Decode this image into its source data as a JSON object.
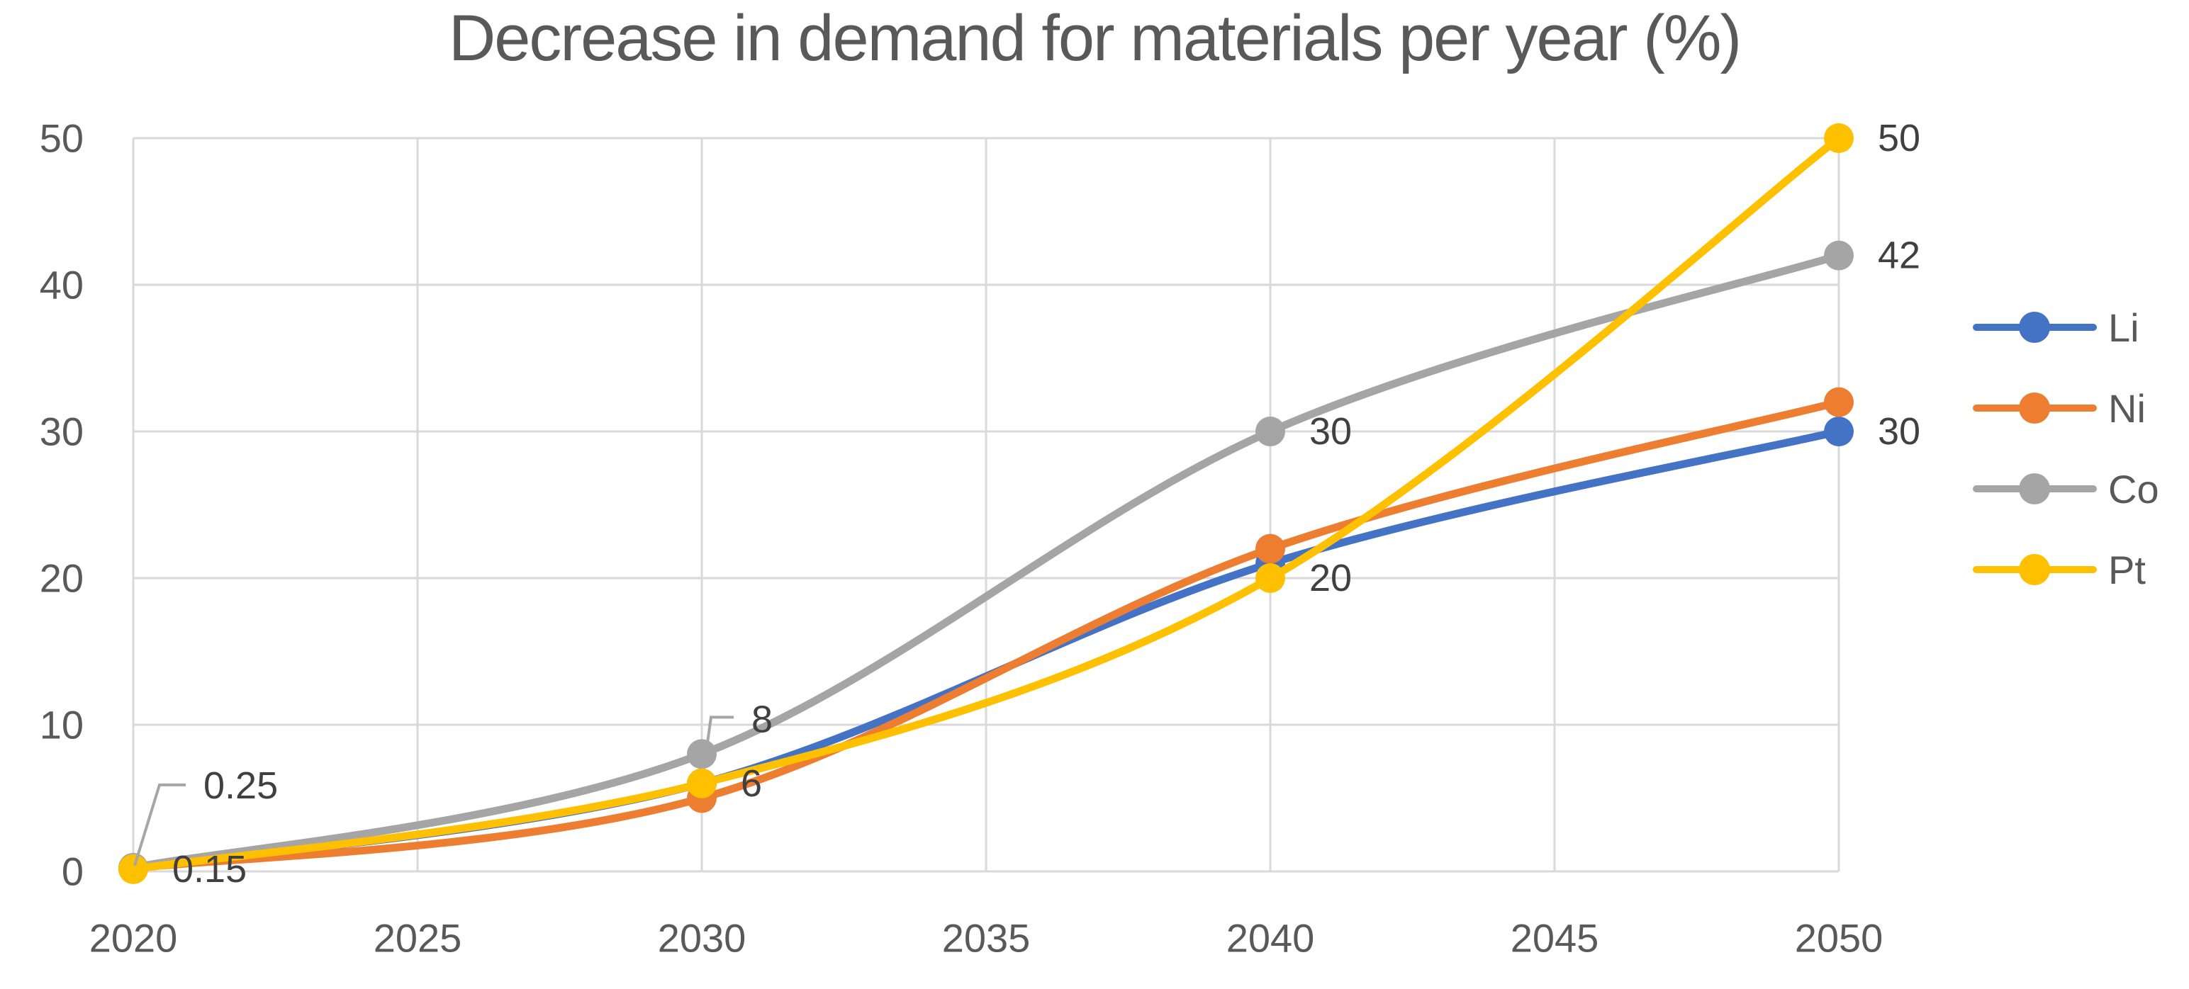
{
  "chart_data": {
    "type": "line",
    "title": "Decrease in demand for materials per year (%)",
    "x": [
      2020,
      2030,
      2040,
      2050
    ],
    "x_tick_labels": [
      "2020",
      "2025",
      "2030",
      "2035",
      "2040",
      "2045",
      "2050"
    ],
    "y_tick_labels": [
      "0",
      "10",
      "20",
      "30",
      "40",
      "50"
    ],
    "xlim": [
      2020,
      2050
    ],
    "ylim": [
      0,
      50
    ],
    "grid": true,
    "smooth": true,
    "legend_position": "right",
    "series": [
      {
        "name": "Li",
        "color": "#4472C4",
        "values": [
          0.2,
          6,
          21,
          30
        ],
        "data_labels": [
          {
            "x": 2050,
            "text": "30",
            "placement": "right"
          }
        ]
      },
      {
        "name": "Ni",
        "color": "#ED7D31",
        "values": [
          0.2,
          5,
          22,
          32
        ],
        "data_labels": []
      },
      {
        "name": "Co",
        "color": "#A5A5A5",
        "values": [
          0.25,
          8,
          30,
          42
        ],
        "data_labels": [
          {
            "x": 2020,
            "text": "0.25",
            "placement": "callout"
          },
          {
            "x": 2030,
            "text": "8",
            "placement": "callout"
          },
          {
            "x": 2040,
            "text": "30",
            "placement": "right"
          },
          {
            "x": 2050,
            "text": "42",
            "placement": "right"
          }
        ]
      },
      {
        "name": "Pt",
        "color": "#FFC000",
        "values": [
          0.15,
          6,
          20,
          50
        ],
        "data_labels": [
          {
            "x": 2020,
            "text": "0.15",
            "placement": "right"
          },
          {
            "x": 2030,
            "text": "6",
            "placement": "right"
          },
          {
            "x": 2040,
            "text": "20",
            "placement": "right"
          },
          {
            "x": 2050,
            "text": "50",
            "placement": "right"
          }
        ]
      }
    ],
    "colors": {
      "title": "#595959",
      "axis_labels": "#595959",
      "data_labels": "#404040",
      "gridlines": "#D9D9D9",
      "leader_lines": "#A6A6A6"
    }
  }
}
